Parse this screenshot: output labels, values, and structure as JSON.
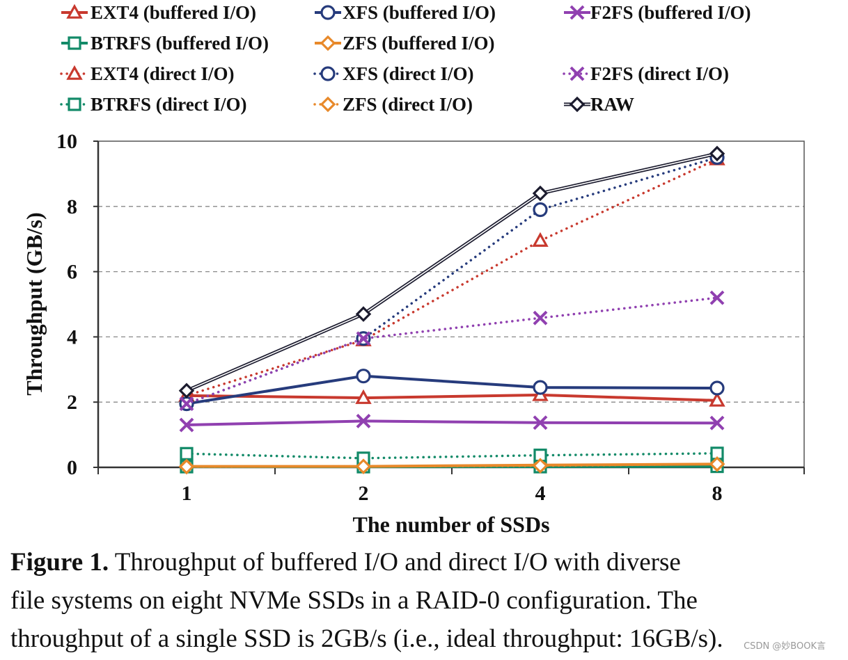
{
  "chart_data": {
    "type": "line",
    "xlabel": "The number of SSDs",
    "ylabel": "Throughput (GB/s)",
    "categories": [
      "1",
      "2",
      "4",
      "8"
    ],
    "ylim": [
      0,
      10
    ],
    "yticks": [
      "0",
      "2",
      "4",
      "6",
      "8",
      "10"
    ],
    "grid": "horizontal dashed",
    "legend": "top",
    "series": [
      {
        "name": "EXT4 (buffered I/O)",
        "color": "#c8392e",
        "marker": "triangle",
        "style": "solid",
        "values": [
          2.2,
          2.13,
          2.22,
          2.05
        ]
      },
      {
        "name": "XFS (buffered I/O)",
        "color": "#263b7c",
        "marker": "circle",
        "style": "solid",
        "values": [
          1.95,
          2.8,
          2.45,
          2.43
        ]
      },
      {
        "name": "F2FS (buffered I/O)",
        "color": "#9040b0",
        "marker": "x",
        "style": "solid",
        "values": [
          1.3,
          1.42,
          1.37,
          1.36
        ]
      },
      {
        "name": "BTRFS (buffered I/O)",
        "color": "#128a68",
        "marker": "square",
        "style": "solid",
        "values": [
          0.02,
          0.02,
          0.02,
          0.03
        ]
      },
      {
        "name": "ZFS (buffered I/O)",
        "color": "#e8892a",
        "marker": "diamond",
        "style": "solid",
        "values": [
          0.03,
          0.03,
          0.07,
          0.1
        ]
      },
      {
        "name": "EXT4 (direct I/O)",
        "color": "#c8392e",
        "marker": "triangle",
        "style": "dotted",
        "values": [
          2.2,
          3.9,
          6.95,
          9.45
        ]
      },
      {
        "name": "XFS (direct I/O)",
        "color": "#263b7c",
        "marker": "circle",
        "style": "dotted",
        "values": [
          1.95,
          3.95,
          7.9,
          9.5
        ]
      },
      {
        "name": "F2FS (direct I/O)",
        "color": "#9040b0",
        "marker": "x",
        "style": "dotted",
        "values": [
          1.95,
          3.95,
          4.58,
          5.2
        ]
      },
      {
        "name": "BTRFS (direct I/O)",
        "color": "#128a68",
        "marker": "square",
        "style": "dotted",
        "values": [
          0.42,
          0.28,
          0.37,
          0.43
        ]
      },
      {
        "name": "ZFS (direct I/O)",
        "color": "#e8892a",
        "marker": "diamond",
        "style": "dotted",
        "values": [
          0.02,
          0.03,
          0.05,
          0.1
        ]
      },
      {
        "name": "RAW",
        "color": "#1b1b2e",
        "marker": "diamond",
        "style": "double",
        "values": [
          2.35,
          4.7,
          8.4,
          9.62
        ]
      }
    ]
  },
  "caption": {
    "label": "Figure 1.",
    "line1": " Throughput of buffered I/O and direct I/O with diverse",
    "line2": "file systems on eight NVMe SSDs in a RAID-0 configuration. The",
    "line3": "throughput of a single SSD is 2GB/s (i.e., ideal throughput: 16GB/s)."
  },
  "watermark": "CSDN @妙BOOK言"
}
